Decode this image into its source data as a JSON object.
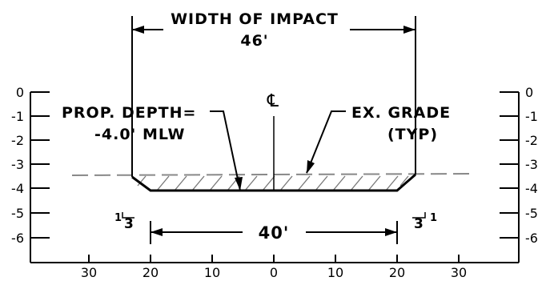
{
  "labels": {
    "width_title": "WIDTH OF IMPACT",
    "width_value": "46'",
    "depth_line1": "PROP. DEPTH=",
    "depth_line2": "-4.0' MLW",
    "grade_line1": "EX. GRADE",
    "grade_line2": "(TYP)",
    "centerline": "℄",
    "bottom_width": "40'",
    "slope_left_rise": "1",
    "slope_left_run": "3",
    "slope_right_run": "3",
    "slope_right_rise": "1"
  },
  "axes": {
    "y_ticks": [
      "0",
      "-1",
      "-2",
      "-3",
      "-4",
      "-5",
      "-6"
    ],
    "x_ticks": [
      "30",
      "20",
      "10",
      "0",
      "10",
      "20",
      "30"
    ]
  },
  "colors": {
    "line": "#000000",
    "existing_grade": "#888888",
    "hatch": "#777777"
  }
}
